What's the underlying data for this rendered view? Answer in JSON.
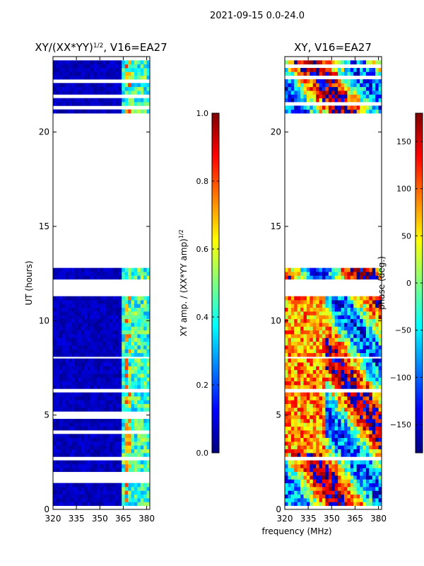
{
  "colors": {
    "background": "#ffffff",
    "colormap": "jet",
    "colormap_stops": [
      "#00007f",
      "#0000ff",
      "#007fff",
      "#00ffff",
      "#7fff7f",
      "#ffff00",
      "#ff7f00",
      "#ff0000",
      "#7f0000"
    ]
  },
  "suptitle": "2021-09-15 0.0-24.0",
  "xlabel_shared": "frequency (MHz)",
  "chart_data": [
    {
      "type": "heatmap",
      "title_main": "XY/(XX*YY)",
      "title_sup": "1/2",
      "title_tail": ", V16=EA27",
      "xlabel": "",
      "ylabel": "UT (hours)",
      "xlim": [
        320,
        382
      ],
      "ylim": [
        0,
        24
      ],
      "xticks": [
        320,
        335,
        350,
        365,
        380
      ],
      "yticks": [
        0,
        5,
        10,
        15,
        20
      ],
      "data_row_ranges_hours": [
        [
          0.2,
          2.6
        ],
        [
          2.8,
          8.0
        ],
        [
          8.1,
          11.3
        ],
        [
          12.2,
          12.8
        ],
        [
          21.0,
          24.0
        ]
      ],
      "bright_channel_bands_mhz": [
        [
          363,
          367
        ],
        [
          368,
          370
        ],
        [
          372,
          374
        ],
        [
          374,
          376
        ],
        [
          377,
          380
        ]
      ],
      "colorbar": {
        "label_main": "XY amp. / (XX*YY amp)",
        "label_sup": "1/2",
        "range": [
          0.0,
          1.0
        ],
        "ticks": [
          "0.0",
          "0.2",
          "0.4",
          "0.6",
          "0.8",
          "1.0"
        ]
      },
      "value_description": "normalized cross-polarization amplitude; background near 0.05, channels 363-380 MHz between 0.3 and 0.5"
    },
    {
      "type": "heatmap",
      "title_main": "XY, V16=EA27",
      "xlabel": "",
      "ylabel": "",
      "xlim": [
        320,
        382
      ],
      "ylim": [
        0,
        24
      ],
      "xticks": [
        320,
        335,
        350,
        365,
        380
      ],
      "yticks": [
        0,
        5,
        10,
        15,
        20
      ],
      "data_row_ranges_hours": [
        [
          0.2,
          2.6
        ],
        [
          2.8,
          8.0
        ],
        [
          8.1,
          11.3
        ],
        [
          12.2,
          12.8
        ],
        [
          21.0,
          24.0
        ]
      ],
      "colorbar": {
        "label": "phase (deg.)",
        "range": [
          -180,
          180
        ],
        "ticks": [
          "150",
          "100",
          "50",
          "0",
          "−50",
          "−100",
          "−150"
        ]
      },
      "value_description": "cross-polarization phase in degrees spanning full -180 to 180 range"
    }
  ]
}
